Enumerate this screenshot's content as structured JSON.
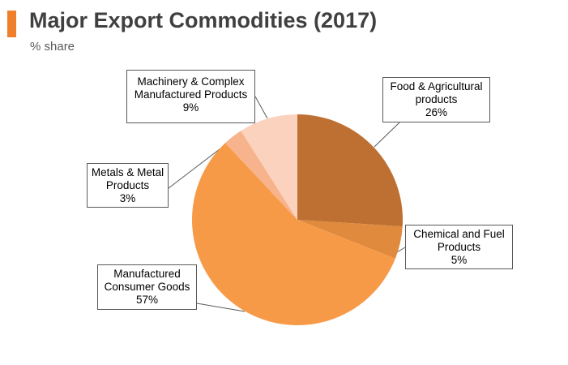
{
  "header": {
    "title": "Major Export Commodities (2017)",
    "subtitle": "% share",
    "accent_color": "#F07F2C"
  },
  "chart_data": {
    "type": "pie",
    "title": "Major Export Commodities (2017)",
    "subtitle": "% share",
    "start": "12 o'clock, clockwise",
    "slices": [
      {
        "label": [
          "Food & Agricultural",
          "products"
        ],
        "value": 26,
        "value_label": "26%",
        "color": "#BE7032"
      },
      {
        "label": [
          "Chemical and Fuel",
          "Products"
        ],
        "value": 5,
        "value_label": "5%",
        "color": "#E08A3E"
      },
      {
        "label": [
          "Manufactured",
          "Consumer Goods"
        ],
        "value": 57,
        "value_label": "57%",
        "color": "#F79A48"
      },
      {
        "label": [
          "Metals & Metal",
          "Products"
        ],
        "value": 3,
        "value_label": "3%",
        "color": "#F7B48C"
      },
      {
        "label": [
          "Machinery & Complex",
          "Manufactured Products"
        ],
        "value": 9,
        "value_label": "9%",
        "color": "#FAD2BD"
      }
    ]
  }
}
